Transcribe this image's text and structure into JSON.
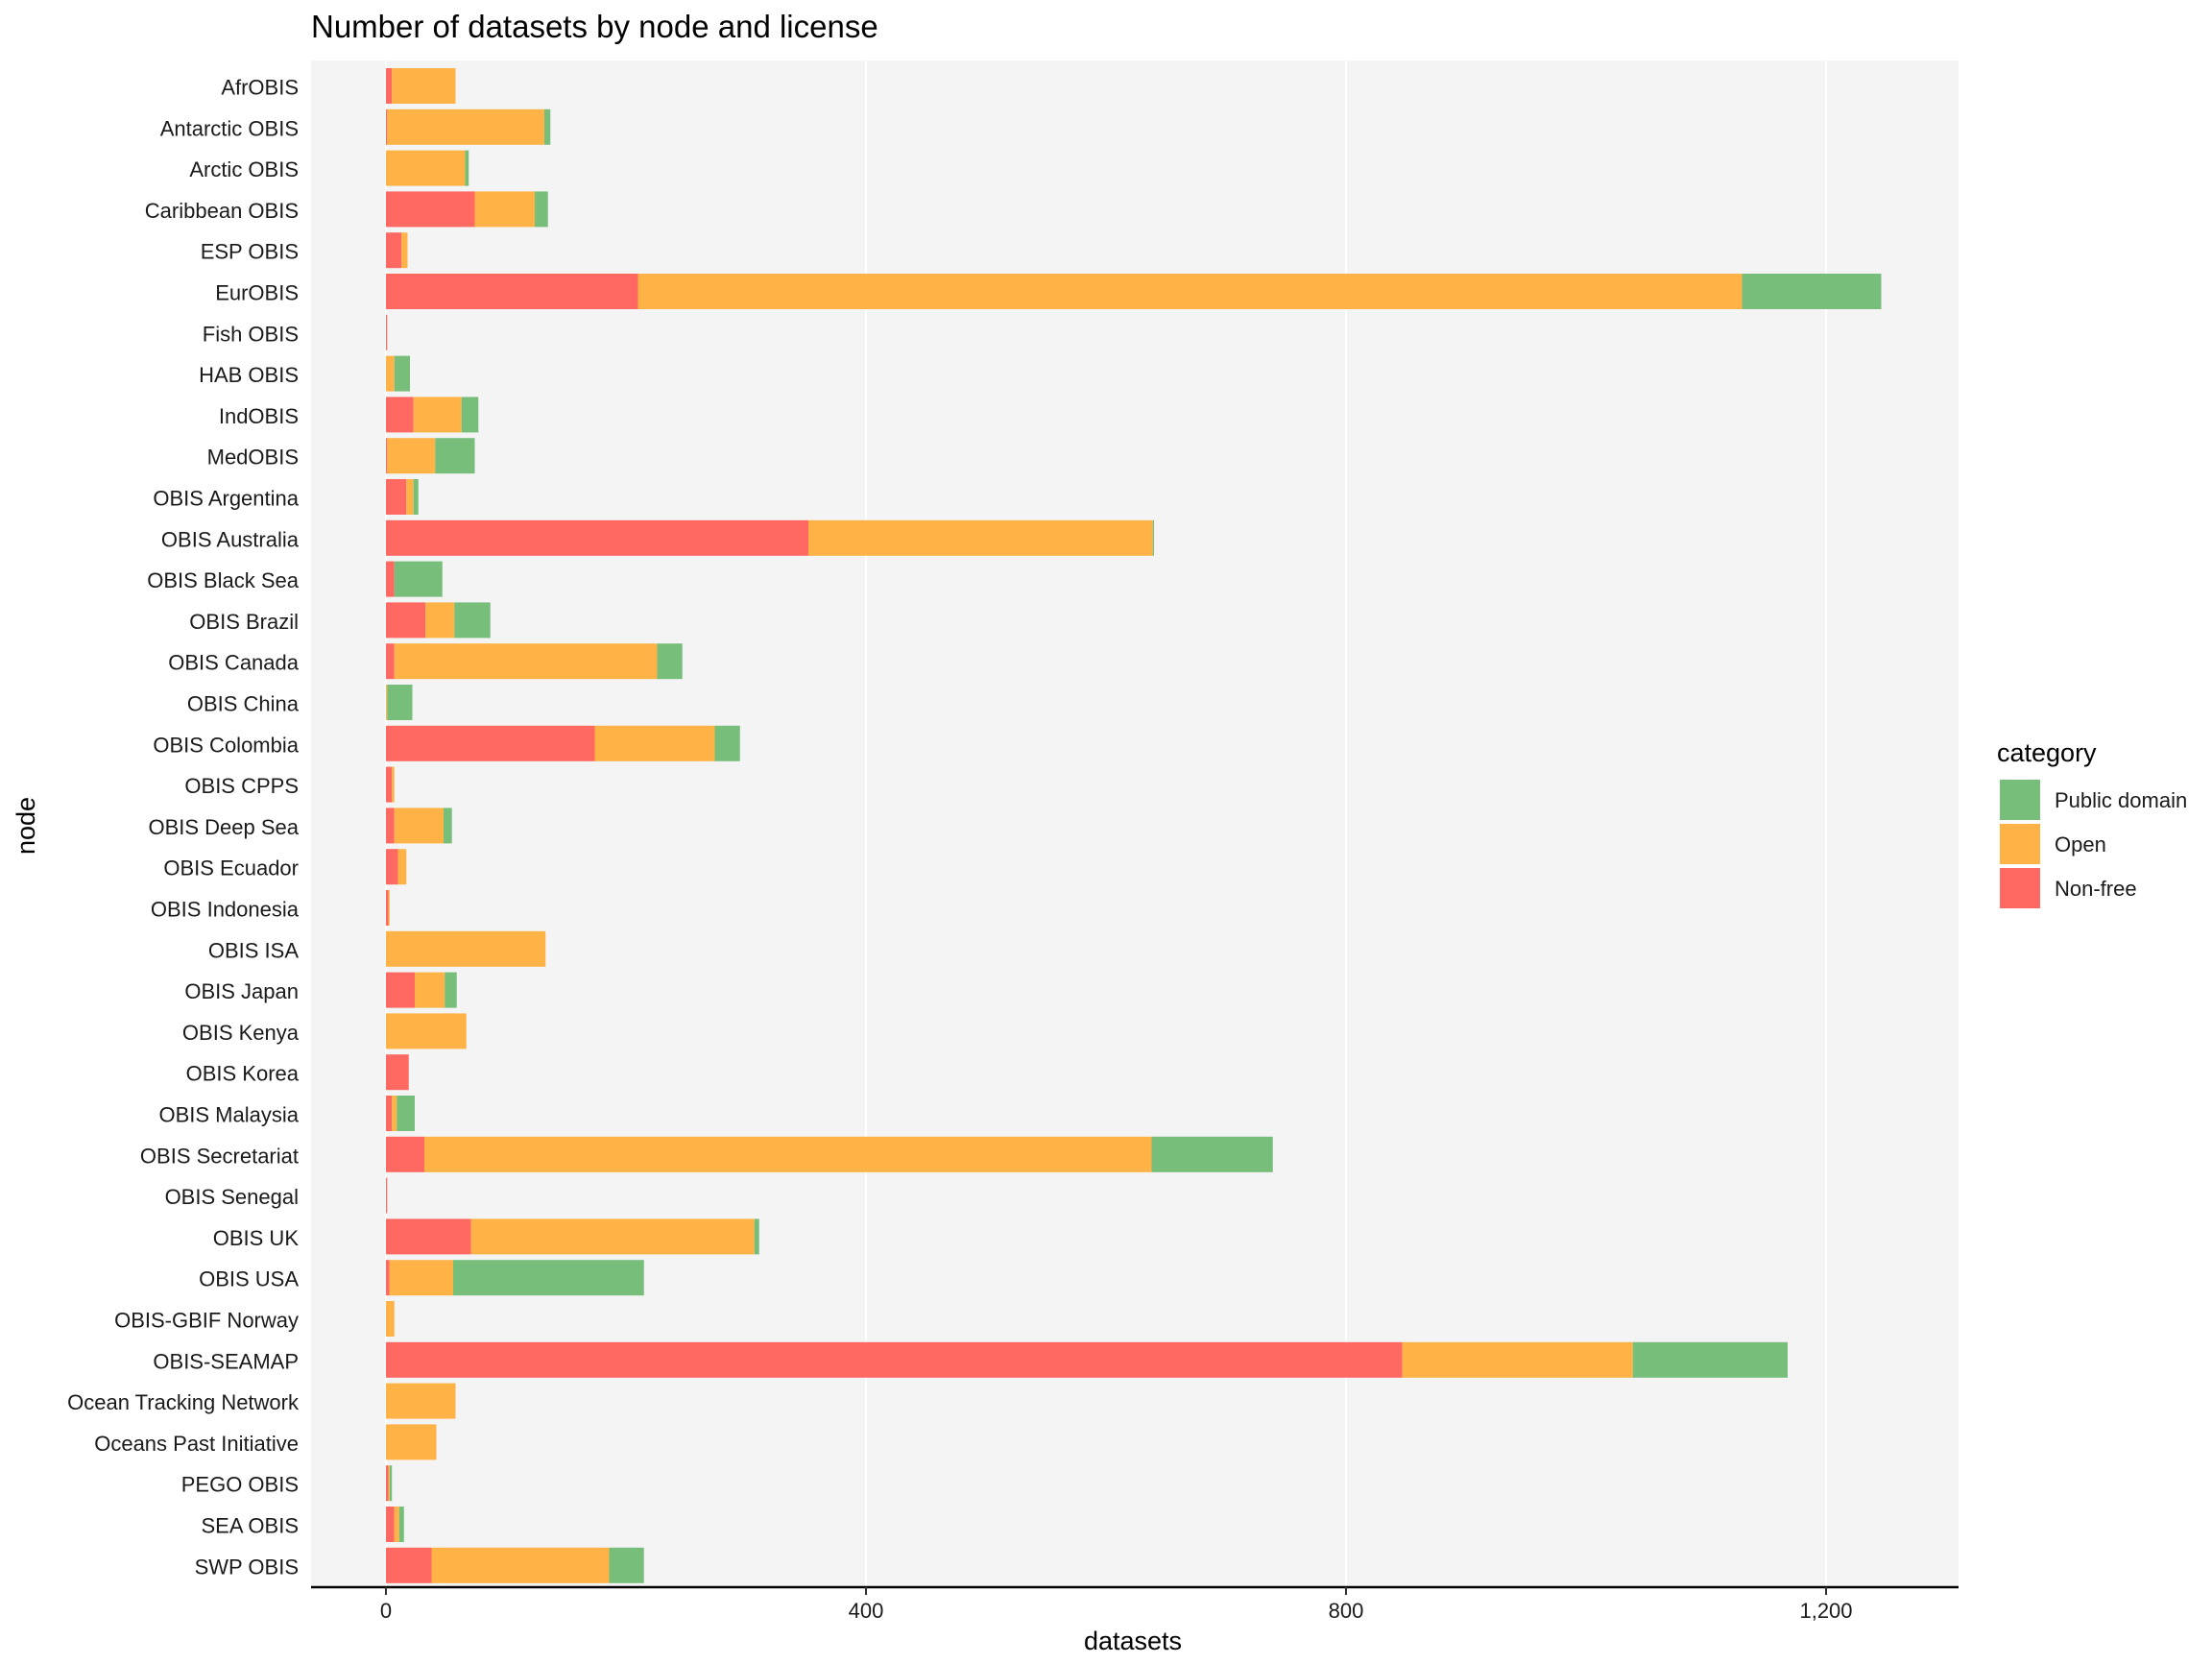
{
  "chart_data": {
    "type": "bar",
    "orientation": "horizontal",
    "stacked": true,
    "title": "Number of datasets by node and license",
    "xlabel": "datasets",
    "ylabel": "node",
    "xlim": [
      -63,
      1310
    ],
    "xticks": [
      0,
      400,
      800,
      1200
    ],
    "xtick_labels": [
      "0",
      "400",
      "800",
      "1,200"
    ],
    "grid": true,
    "legend": {
      "title": "category",
      "position": "right"
    },
    "categories": [
      "AfrOBIS",
      "Antarctic OBIS",
      "Arctic OBIS",
      "Caribbean OBIS",
      "ESP OBIS",
      "EurOBIS",
      "Fish OBIS",
      "HAB OBIS",
      "IndOBIS",
      "MedOBIS",
      "OBIS Argentina",
      "OBIS Australia",
      "OBIS Black Sea",
      "OBIS Brazil",
      "OBIS Canada",
      "OBIS China",
      "OBIS Colombia",
      "OBIS CPPS",
      "OBIS Deep Sea",
      "OBIS Ecuador",
      "OBIS Indonesia",
      "OBIS ISA",
      "OBIS Japan",
      "OBIS Kenya",
      "OBIS Korea",
      "OBIS Malaysia",
      "OBIS Secretariat",
      "OBIS Senegal",
      "OBIS UK",
      "OBIS USA",
      "OBIS-GBIF Norway",
      "OBIS-SEAMAP",
      "Ocean Tracking Network",
      "Oceans Past Initiative",
      "PEGO OBIS",
      "SEA OBIS",
      "SWP OBIS"
    ],
    "series": [
      {
        "name": "Non-free",
        "color": "#FF6961",
        "values": [
          5,
          1,
          0,
          74,
          13,
          210,
          1,
          0,
          23,
          1,
          17,
          352,
          7,
          33,
          7,
          0,
          174,
          5,
          7,
          10,
          2,
          0,
          24,
          0,
          19,
          5,
          32,
          1,
          71,
          3,
          0,
          847,
          0,
          0,
          2,
          7,
          38
        ]
      },
      {
        "name": "Open",
        "color": "#FFB347",
        "values": [
          53,
          131,
          66,
          50,
          5,
          920,
          0,
          7,
          40,
          40,
          6,
          287,
          0,
          24,
          219,
          1,
          100,
          2,
          41,
          7,
          1,
          133,
          25,
          67,
          0,
          4,
          606,
          0,
          236,
          53,
          7,
          192,
          58,
          42,
          1,
          4,
          148
        ]
      },
      {
        "name": "Public domain",
        "color": "#77BE7B",
        "values": [
          0,
          5,
          3,
          11,
          0,
          116,
          0,
          13,
          14,
          33,
          4,
          1,
          40,
          30,
          21,
          21,
          21,
          0,
          7,
          0,
          0,
          0,
          10,
          0,
          0,
          15,
          101,
          0,
          4,
          159,
          0,
          129,
          0,
          0,
          2,
          4,
          29
        ]
      }
    ],
    "legend_order": [
      "Public domain",
      "Open",
      "Non-free"
    ]
  }
}
